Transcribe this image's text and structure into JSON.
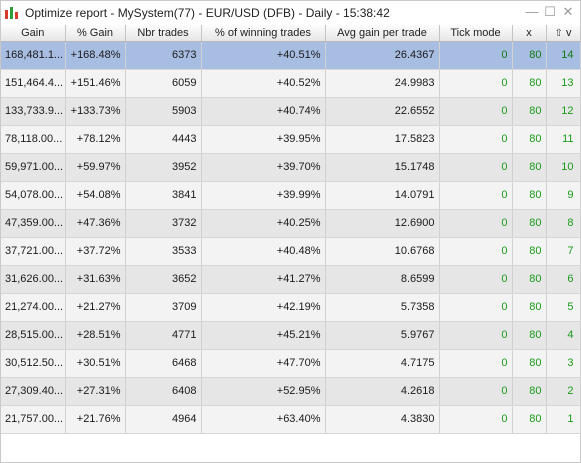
{
  "window": {
    "title": "Optimize report - MySystem(77) - EUR/USD (DFB) - Daily - 15:38:42",
    "controls": {
      "minimize": "—",
      "maximize": "☐",
      "close": "✕"
    }
  },
  "table": {
    "headers": {
      "gain": "Gain",
      "pct_gain": "% Gain",
      "nbr_trades": "Nbr trades",
      "pct_winning": "% of winning trades",
      "avg_gain": "Avg gain per trade",
      "tick_mode": "Tick mode",
      "x": "x",
      "sort_icon": "⇧",
      "v": "v"
    },
    "rows": [
      {
        "gain": "168,481.1...",
        "pct_gain": "+168.48%",
        "nbr_trades": "6373",
        "pct_winning": "+40.51%",
        "avg_gain": "26.4367",
        "tick_mode": "0",
        "x": "80",
        "v": "14"
      },
      {
        "gain": "151,464.4...",
        "pct_gain": "+151.46%",
        "nbr_trades": "6059",
        "pct_winning": "+40.52%",
        "avg_gain": "24.9983",
        "tick_mode": "0",
        "x": "80",
        "v": "13"
      },
      {
        "gain": "133,733.9...",
        "pct_gain": "+133.73%",
        "nbr_trades": "5903",
        "pct_winning": "+40.74%",
        "avg_gain": "22.6552",
        "tick_mode": "0",
        "x": "80",
        "v": "12"
      },
      {
        "gain": "78,118.00...",
        "pct_gain": "+78.12%",
        "nbr_trades": "4443",
        "pct_winning": "+39.95%",
        "avg_gain": "17.5823",
        "tick_mode": "0",
        "x": "80",
        "v": "11"
      },
      {
        "gain": "59,971.00...",
        "pct_gain": "+59.97%",
        "nbr_trades": "3952",
        "pct_winning": "+39.70%",
        "avg_gain": "15.1748",
        "tick_mode": "0",
        "x": "80",
        "v": "10"
      },
      {
        "gain": "54,078.00...",
        "pct_gain": "+54.08%",
        "nbr_trades": "3841",
        "pct_winning": "+39.99%",
        "avg_gain": "14.0791",
        "tick_mode": "0",
        "x": "80",
        "v": "9"
      },
      {
        "gain": "47,359.00...",
        "pct_gain": "+47.36%",
        "nbr_trades": "3732",
        "pct_winning": "+40.25%",
        "avg_gain": "12.6900",
        "tick_mode": "0",
        "x": "80",
        "v": "8"
      },
      {
        "gain": "37,721.00...",
        "pct_gain": "+37.72%",
        "nbr_trades": "3533",
        "pct_winning": "+40.48%",
        "avg_gain": "10.6768",
        "tick_mode": "0",
        "x": "80",
        "v": "7"
      },
      {
        "gain": "31,626.00...",
        "pct_gain": "+31.63%",
        "nbr_trades": "3652",
        "pct_winning": "+41.27%",
        "avg_gain": "8.6599",
        "tick_mode": "0",
        "x": "80",
        "v": "6"
      },
      {
        "gain": "21,274.00...",
        "pct_gain": "+21.27%",
        "nbr_trades": "3709",
        "pct_winning": "+42.19%",
        "avg_gain": "5.7358",
        "tick_mode": "0",
        "x": "80",
        "v": "5"
      },
      {
        "gain": "28,515.00...",
        "pct_gain": "+28.51%",
        "nbr_trades": "4771",
        "pct_winning": "+45.21%",
        "avg_gain": "5.9767",
        "tick_mode": "0",
        "x": "80",
        "v": "4"
      },
      {
        "gain": "30,512.50...",
        "pct_gain": "+30.51%",
        "nbr_trades": "6468",
        "pct_winning": "+47.70%",
        "avg_gain": "4.7175",
        "tick_mode": "0",
        "x": "80",
        "v": "3"
      },
      {
        "gain": "27,309.40...",
        "pct_gain": "+27.31%",
        "nbr_trades": "6408",
        "pct_winning": "+52.95%",
        "avg_gain": "4.2618",
        "tick_mode": "0",
        "x": "80",
        "v": "2"
      },
      {
        "gain": "21,757.00...",
        "pct_gain": "+21.76%",
        "nbr_trades": "4964",
        "pct_winning": "+63.40%",
        "avg_gain": "4.3830",
        "tick_mode": "0",
        "x": "80",
        "v": "1"
      }
    ],
    "selected_row": 0
  },
  "colors": {
    "selected_row": "#a8bde2",
    "odd_row": "#f3f3f3",
    "even_row": "#e6e6e6",
    "parameter_text": "#1a9a1a"
  }
}
